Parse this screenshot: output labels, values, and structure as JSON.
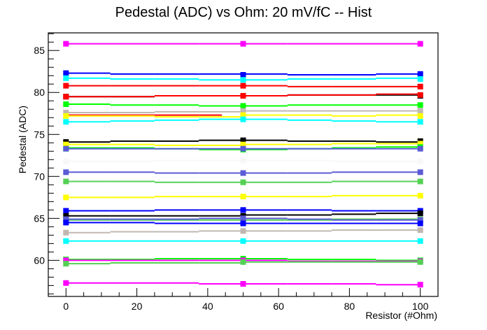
{
  "chart_data": {
    "type": "line",
    "style": "step-histogram with square markers",
    "title": "Pedestal (ADC) vs Ohm: 20 mV/fC -- Hist",
    "xlabel": "Resistor (#Ohm)",
    "ylabel": "Pedestal (ADC)",
    "xlim": [
      -5,
      105
    ],
    "ylim": [
      55.7,
      87.1
    ],
    "xticks": [
      0,
      20,
      40,
      60,
      80,
      100
    ],
    "xtick_labels": [
      "0",
      "20",
      "40",
      "60",
      "80",
      "100"
    ],
    "yticks": [
      60,
      65,
      70,
      75,
      80,
      85
    ],
    "ytick_labels": [
      "60",
      "65",
      "70",
      "75",
      "80",
      "85"
    ],
    "grid": false,
    "legend": "none",
    "x": [
      0,
      50,
      100
    ],
    "step_edges": [
      0,
      12.5,
      25,
      37.5,
      50,
      62.5,
      75,
      87.5,
      100
    ],
    "series": [
      {
        "color": "#ff00ff",
        "markers": [
          85.8,
          85.8,
          85.8
        ],
        "steps": [
          85.8,
          85.8,
          85.8,
          85.8,
          85.8,
          85.8,
          85.8,
          85.8
        ]
      },
      {
        "color": "#0000ff",
        "markers": [
          82.3,
          82.1,
          82.2
        ],
        "steps": [
          82.3,
          82.2,
          82.2,
          82.2,
          82.2,
          82.1,
          82.1,
          82.2
        ]
      },
      {
        "color": "#00ffff",
        "markers": [
          81.7,
          81.5,
          81.6
        ],
        "steps": [
          81.7,
          81.6,
          81.6,
          81.5,
          81.5,
          81.6,
          81.6,
          81.7
        ]
      },
      {
        "color": "#ff0000",
        "markers": [
          80.8,
          80.8,
          80.7
        ],
        "steps": [
          80.8,
          80.8,
          80.8,
          80.8,
          80.8,
          80.7,
          80.7,
          80.7
        ]
      },
      {
        "color": "#000000",
        "markers": [
          79.5,
          79.6,
          79.6
        ],
        "steps": [
          79.5,
          79.5,
          79.6,
          79.6,
          79.6,
          79.7,
          79.7,
          79.7
        ]
      },
      {
        "color": "#ff0000",
        "markers": [
          79.5,
          79.6,
          79.7
        ],
        "steps": [
          79.5,
          79.5,
          79.6,
          79.6,
          79.6,
          79.7,
          79.7,
          79.8
        ]
      },
      {
        "color": "#00ff00",
        "markers": [
          78.6,
          78.4,
          78.5
        ],
        "steps": [
          78.6,
          78.5,
          78.5,
          78.4,
          78.4,
          78.5,
          78.5,
          78.5
        ]
      },
      {
        "color": "#c0b8b0",
        "markers": [
          77.6,
          77.8,
          77.8
        ],
        "steps": [
          77.6,
          77.6,
          77.7,
          77.7,
          77.8,
          77.8,
          77.8,
          77.8
        ]
      },
      {
        "color": "#ff0000",
        "markers": [
          77.3,
          77.3,
          77.3
        ],
        "steps": [
          77.3,
          77.3,
          77.3,
          77.3,
          77.3,
          77.3,
          77.3,
          77.3
        ],
        "partial_range": [
          0,
          44
        ]
      },
      {
        "color": "#ffff00",
        "markers": [
          77.2,
          77.3,
          77.2
        ],
        "steps": [
          77.2,
          77.2,
          77.1,
          77.1,
          77.3,
          77.3,
          77.2,
          77.3
        ]
      },
      {
        "color": "#00ffff",
        "markers": [
          76.5,
          76.8,
          76.5
        ],
        "steps": [
          76.5,
          76.6,
          76.7,
          76.8,
          76.8,
          76.7,
          76.6,
          76.5
        ]
      },
      {
        "color": "#000000",
        "markers": [
          74.1,
          74.3,
          74.2
        ],
        "steps": [
          74.1,
          74.2,
          74.2,
          74.3,
          74.3,
          74.2,
          74.2,
          74.1
        ]
      },
      {
        "color": "#ffff00",
        "markers": [
          73.8,
          73.8,
          73.9
        ],
        "steps": [
          73.8,
          73.8,
          73.7,
          73.7,
          73.8,
          73.8,
          73.9,
          73.9
        ]
      },
      {
        "color": "#00ff00",
        "markers": [
          73.3,
          73.2,
          73.5
        ],
        "steps": [
          73.4,
          73.4,
          73.3,
          73.2,
          73.2,
          73.3,
          73.4,
          73.5
        ]
      },
      {
        "color": "#5b5bd6",
        "markers": [
          73.3,
          73.3,
          73.3
        ],
        "steps": [
          73.3,
          73.3,
          73.3,
          73.3,
          73.3,
          73.3,
          73.3,
          73.3
        ]
      },
      {
        "color": "#f7f7f7",
        "markers": [
          71.8,
          71.9,
          71.8
        ],
        "steps": [
          71.8,
          71.8,
          71.9,
          71.9,
          71.9,
          71.9,
          71.8,
          71.8
        ]
      },
      {
        "color": "#5b5bd6",
        "markers": [
          70.5,
          70.4,
          70.5
        ],
        "steps": [
          70.5,
          70.5,
          70.4,
          70.4,
          70.4,
          70.4,
          70.5,
          70.5
        ]
      },
      {
        "color": "#55d055",
        "markers": [
          69.4,
          69.3,
          69.4
        ],
        "steps": [
          69.4,
          69.4,
          69.3,
          69.3,
          69.3,
          69.3,
          69.4,
          69.4
        ]
      },
      {
        "color": "#ffff00",
        "markers": [
          67.5,
          67.6,
          67.7
        ],
        "steps": [
          67.5,
          67.5,
          67.6,
          67.6,
          67.6,
          67.6,
          67.7,
          67.7
        ]
      },
      {
        "color": "#0000ff",
        "markers": [
          65.9,
          66.0,
          65.9
        ],
        "steps": [
          65.9,
          65.9,
          66.0,
          66.0,
          66.0,
          66.0,
          65.9,
          65.9
        ]
      },
      {
        "color": "#000000",
        "markers": [
          65.3,
          65.3,
          65.6
        ],
        "steps": [
          65.3,
          65.3,
          65.3,
          65.3,
          65.4,
          65.4,
          65.5,
          65.6
        ]
      },
      {
        "color": "#55d055",
        "markers": [
          64.7,
          64.8,
          64.9
        ],
        "steps": [
          64.8,
          64.8,
          64.8,
          64.8,
          64.8,
          64.8,
          64.9,
          64.9
        ]
      },
      {
        "color": "#5b5bd6",
        "markers": [
          64.9,
          65.0,
          64.8
        ],
        "steps": [
          64.9,
          64.9,
          64.9,
          65.0,
          65.0,
          64.9,
          64.8,
          64.8
        ]
      },
      {
        "color": "#0000ff",
        "markers": [
          64.5,
          64.4,
          64.4
        ],
        "steps": [
          64.5,
          64.5,
          64.4,
          64.4,
          64.4,
          64.4,
          64.4,
          64.4
        ]
      },
      {
        "color": "#c0b8b0",
        "markers": [
          63.3,
          63.5,
          63.6
        ],
        "steps": [
          63.3,
          63.4,
          63.4,
          63.5,
          63.5,
          63.5,
          63.6,
          63.6
        ]
      },
      {
        "color": "#00ffff",
        "markers": [
          62.3,
          62.3,
          62.3
        ],
        "steps": [
          62.3,
          62.3,
          62.3,
          62.3,
          62.3,
          62.3,
          62.3,
          62.3
        ]
      },
      {
        "color": "#00ff00",
        "markers": [
          60.1,
          60.2,
          60.0
        ],
        "steps": [
          60.1,
          60.1,
          60.2,
          60.2,
          60.2,
          60.1,
          60.1,
          60.0
        ]
      },
      {
        "color": "#ff00ff",
        "markers": [
          60.0,
          60.0,
          59.9
        ],
        "steps": [
          60.0,
          60.0,
          60.0,
          60.0,
          60.0,
          59.9,
          59.9,
          59.9
        ]
      },
      {
        "color": "#55d055",
        "markers": [
          59.6,
          59.8,
          59.8
        ],
        "steps": [
          59.6,
          59.7,
          59.7,
          59.7,
          59.8,
          59.8,
          59.8,
          59.8
        ]
      },
      {
        "color": "#ff00ff",
        "markers": [
          57.3,
          57.2,
          57.1
        ],
        "steps": [
          57.3,
          57.3,
          57.3,
          57.2,
          57.2,
          57.2,
          57.2,
          57.1
        ]
      }
    ]
  }
}
